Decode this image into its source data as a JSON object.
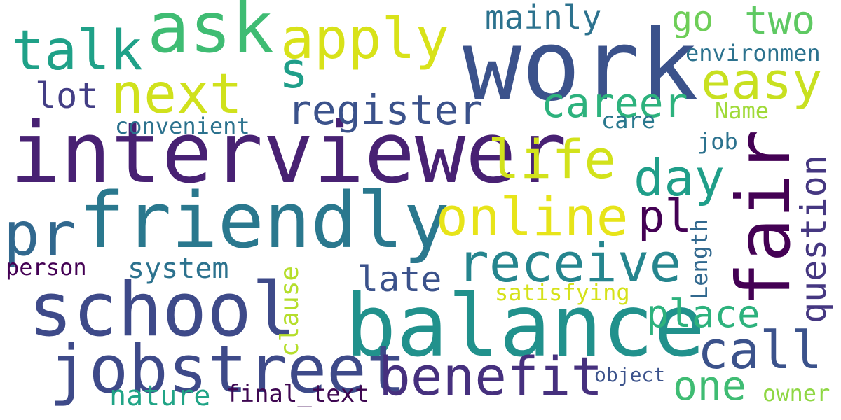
{
  "words": [
    {
      "text": "work",
      "color": "#3b528b"
    },
    {
      "text": "interviewer",
      "color": "#482173"
    },
    {
      "text": "friendly",
      "color": "#2a788e"
    },
    {
      "text": "balance",
      "color": "#21918c"
    },
    {
      "text": "fair",
      "color": "#440154"
    },
    {
      "text": "school",
      "color": "#3e4a89"
    },
    {
      "text": "ask",
      "color": "#3fbc73"
    },
    {
      "text": "jobstreet",
      "color": "#3e4a89"
    },
    {
      "text": "receive",
      "color": "#25858e"
    },
    {
      "text": "benefit",
      "color": "#46307e"
    },
    {
      "text": "apply",
      "color": "#d8e219"
    },
    {
      "text": "talk",
      "color": "#1fa188"
    },
    {
      "text": "next",
      "color": "#d0e11c"
    },
    {
      "text": "life",
      "color": "#d2e21b"
    },
    {
      "text": "online",
      "color": "#e7e419"
    },
    {
      "text": "easy",
      "color": "#c8e020"
    },
    {
      "text": "day",
      "color": "#1f9e89"
    },
    {
      "text": "call",
      "color": "#3b528b"
    },
    {
      "text": "career",
      "color": "#2db27d"
    },
    {
      "text": "register",
      "color": "#3b528b"
    },
    {
      "text": "pr",
      "color": "#31688e"
    },
    {
      "text": "place",
      "color": "#2db27d"
    },
    {
      "text": "one",
      "color": "#3fbc73"
    },
    {
      "text": "question",
      "color": "#453781"
    },
    {
      "text": "late",
      "color": "#3b528b"
    },
    {
      "text": "two",
      "color": "#5ec962"
    },
    {
      "text": "mainly",
      "color": "#2c728e"
    },
    {
      "text": "s",
      "color": "#1f9e89"
    },
    {
      "text": "pl",
      "color": "#440154"
    },
    {
      "text": "go",
      "color": "#6ece58"
    },
    {
      "text": "lot",
      "color": "#433e85"
    },
    {
      "text": "system",
      "color": "#2c728e"
    },
    {
      "text": "nature",
      "color": "#20a486"
    },
    {
      "text": "final_text",
      "color": "#3e0751"
    },
    {
      "text": "clause",
      "color": "#b5de2b"
    },
    {
      "text": "Length",
      "color": "#31688e"
    },
    {
      "text": "satisfying",
      "color": "#d5e21a"
    },
    {
      "text": "person",
      "color": "#440154"
    },
    {
      "text": "convenient",
      "color": "#2c728e"
    },
    {
      "text": "environmen",
      "color": "#2c728e"
    },
    {
      "text": "Name",
      "color": "#a0da39"
    },
    {
      "text": "care",
      "color": "#2a788e"
    },
    {
      "text": "job",
      "color": "#2c728e"
    },
    {
      "text": "object",
      "color": "#3b528b"
    },
    {
      "text": "owner",
      "color": "#8fd744"
    }
  ]
}
